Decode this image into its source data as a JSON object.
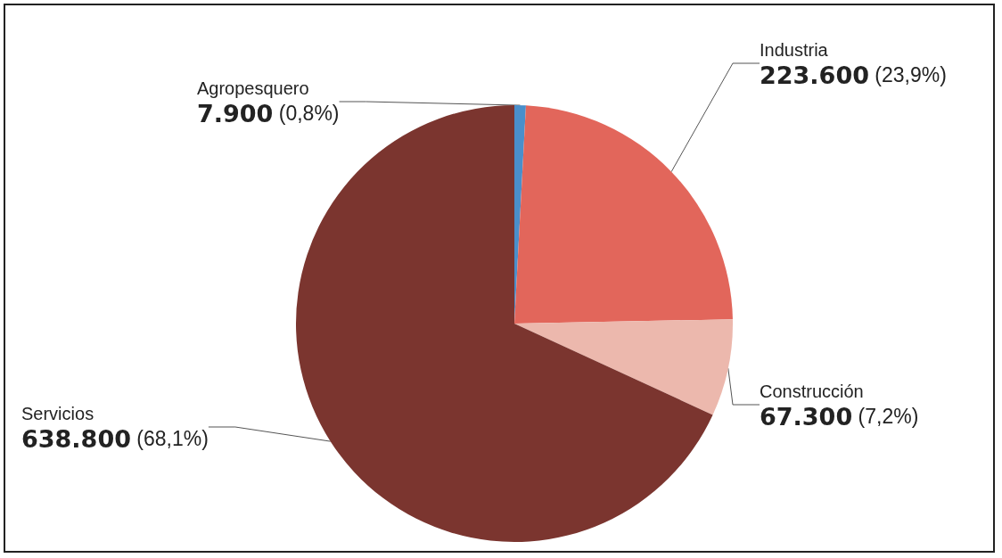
{
  "chart_data": {
    "type": "pie",
    "categories": [
      "Agropesquero",
      "Industria",
      "Construcción",
      "Servicios"
    ],
    "values": [
      7900,
      223600,
      67300,
      638800
    ],
    "value_labels": [
      "7.900 (0,8%)",
      "223.600 (23,9%)",
      "67.300 (7,2%)",
      "638.800 (68,1%)"
    ],
    "colors": [
      "#4a8fcb",
      "#e2665b",
      "#ecb8ad",
      "#7b352f"
    ],
    "legend": false
  }
}
